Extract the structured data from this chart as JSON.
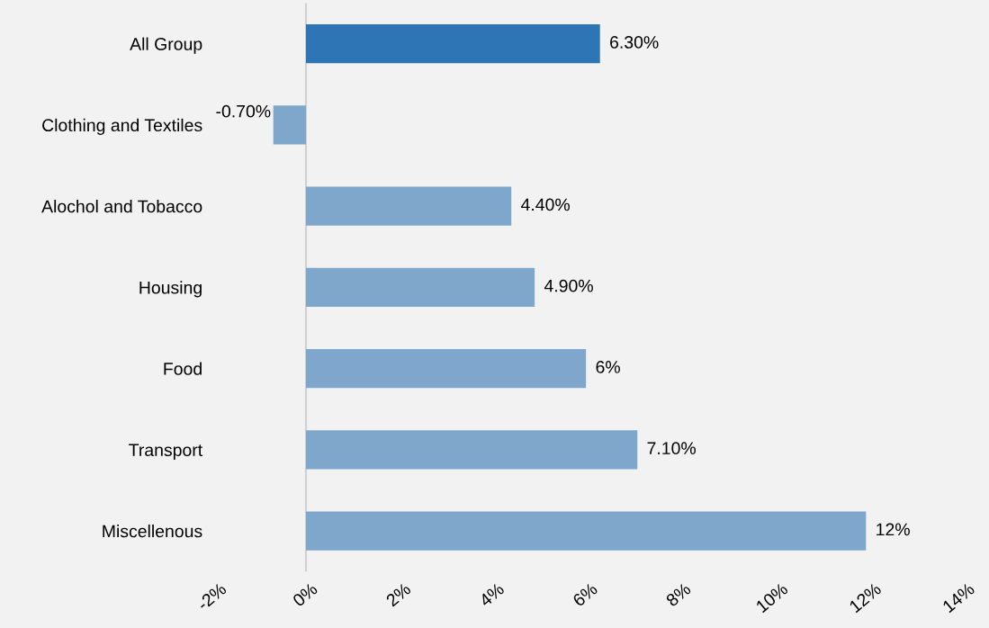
{
  "chart_data": {
    "type": "bar",
    "orientation": "horizontal",
    "categories": [
      "All Group",
      "Clothing and Textiles",
      "Alochol and Tobacco",
      "Housing",
      "Food",
      "Transport",
      "Miscellenous"
    ],
    "values": [
      6.3,
      -0.7,
      4.4,
      4.9,
      6,
      7.1,
      12
    ],
    "colors": [
      "#2e75b6",
      "#7fa6cb",
      "#7fa6cb",
      "#7fa6cb",
      "#7fa6cb",
      "#7fa6cb",
      "#7fa6cb"
    ],
    "value_labels": [
      "6.30%",
      "-0.70%",
      "4.40%",
      "4.90%",
      "6%",
      "7.10%",
      "12%"
    ],
    "xlim": [
      -2,
      14
    ],
    "xticks": [
      {
        "value": -2,
        "label": "-2%"
      },
      {
        "value": 0,
        "label": "0%"
      },
      {
        "value": 2,
        "label": "2%"
      },
      {
        "value": 4,
        "label": "4%"
      },
      {
        "value": 6,
        "label": "6%"
      },
      {
        "value": 8,
        "label": "8%"
      },
      {
        "value": 10,
        "label": "10%"
      },
      {
        "value": 12,
        "label": "12%"
      },
      {
        "value": 14,
        "label": "14%"
      }
    ],
    "ref_lines": [
      {
        "axis": "x",
        "value": 0,
        "color": "#d0d0d0"
      }
    ],
    "grid": false,
    "legend": false
  }
}
